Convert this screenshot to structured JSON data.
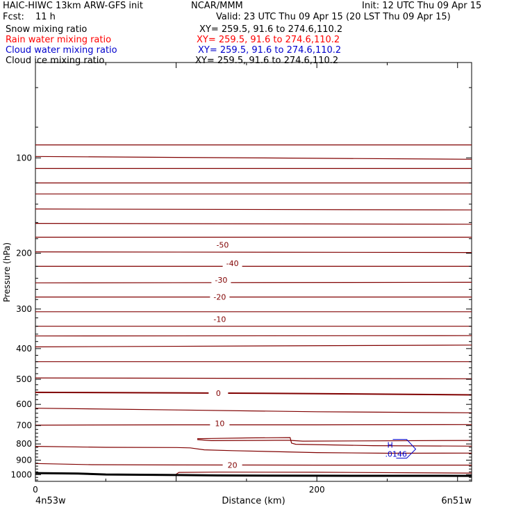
{
  "header": {
    "title_left": "HAIC-HIWC 13km ARW-GFS init",
    "center": "NCAR/MMM",
    "init": "Init: 12 UTC Thu 09 Apr 15",
    "fcst_label": "Fcst:",
    "fcst_value": "11 h",
    "valid": "Valid: 23 UTC Thu 09 Apr 15 (20 LST Thu 09 Apr 15)"
  },
  "fields": [
    {
      "name": "Snow mixing ratio",
      "xy": "XY= 259.5, 91.6 to 274.6,110.2",
      "color": "#000000"
    },
    {
      "name": "Rain water mixing ratio",
      "xy": "XY= 259.5, 91.6 to 274.6,110.2",
      "color": "#ff0000"
    },
    {
      "name": "Cloud water mixing ratio",
      "xy": "XY= 259.5, 91.6 to 274.6,110.2",
      "color": "#0000cc"
    },
    {
      "name": "Cloud ice mixing ratio",
      "xy": "XY= 259.5, 91.6 to 274.6,110.2",
      "color": "#000000"
    }
  ],
  "chart_data": {
    "type": "line",
    "xlabel": "Distance (km)",
    "ylabel": "Pressure (hPa)",
    "xlim": [
      0,
      310
    ],
    "ylim": [
      1050,
      50
    ],
    "y_scale": "log",
    "x_ticks": [
      0,
      200
    ],
    "y_ticks": [
      100,
      200,
      300,
      400,
      500,
      600,
      700,
      800,
      900,
      1000
    ],
    "x_end_labels": {
      "left": "4n53w",
      "right": "6n51w"
    },
    "temperature_labels": [
      {
        "text": "-50",
        "x": 133,
        "p": 188
      },
      {
        "text": "-40",
        "x": 140,
        "p": 215
      },
      {
        "text": "-30",
        "x": 132,
        "p": 243
      },
      {
        "text": "-20",
        "x": 131,
        "p": 275
      },
      {
        "text": "-10",
        "x": 131,
        "p": 323
      },
      {
        "text": "0",
        "x": 130,
        "p": 553
      },
      {
        "text": "10",
        "x": 131,
        "p": 688
      },
      {
        "text": "20",
        "x": 140,
        "p": 932
      }
    ],
    "high_marker": {
      "label": "H",
      "value": ".0146",
      "x": 250,
      "p": 835
    },
    "isotherm_color": "#800000",
    "ground_color": "#000000",
    "isotherms": [
      {
        "x": [
          0,
          310
        ],
        "p": [
          91,
          91
        ]
      },
      {
        "x": [
          0,
          310
        ],
        "p": [
          99,
          101
        ]
      },
      {
        "x": [
          0,
          310
        ],
        "p": [
          108,
          108
        ]
      },
      {
        "x": [
          0,
          310
        ],
        "p": [
          120,
          120
        ]
      },
      {
        "x": [
          0,
          310
        ],
        "p": [
          130,
          130
        ]
      },
      {
        "x": [
          0,
          310
        ],
        "p": [
          145,
          146
        ]
      },
      {
        "x": [
          0,
          310
        ],
        "p": [
          161,
          162
        ]
      },
      {
        "x": [
          0,
          310
        ],
        "p": [
          178,
          178
        ]
      },
      {
        "x": [
          0,
          310
        ],
        "p": [
          198,
          199
        ]
      },
      {
        "x": [
          0,
          310
        ],
        "p": [
          220,
          220
        ]
      },
      {
        "x": [
          0,
          310
        ],
        "p": [
          248,
          247
        ]
      },
      {
        "x": [
          0,
          310
        ],
        "p": [
          275,
          275
        ]
      },
      {
        "x": [
          0,
          310
        ],
        "p": [
          306,
          306
        ]
      },
      {
        "x": [
          0,
          310
        ],
        "p": [
          340,
          340
        ]
      },
      {
        "x": [
          0,
          310
        ],
        "p": [
          365,
          364
        ]
      },
      {
        "x": [
          0,
          310
        ],
        "p": [
          395,
          390
        ]
      },
      {
        "x": [
          0,
          310
        ],
        "p": [
          440,
          440
        ]
      },
      {
        "x": [
          0,
          310
        ],
        "p": [
          495,
          498
        ]
      },
      {
        "x": [
          0,
          100,
          200,
          310
        ],
        "p": [
          550,
          552,
          555,
          560
        ]
      },
      {
        "x": [
          0,
          100,
          200,
          310
        ],
        "p": [
          617,
          625,
          633,
          638
        ]
      },
      {
        "x": [
          0,
          100,
          200,
          310
        ],
        "p": [
          698,
          696,
          696,
          695
        ]
      },
      {
        "x": [
          115,
          125,
          150,
          170,
          180,
          190,
          310
        ],
        "p": [
          775,
          781,
          780,
          779,
          779,
          784,
          780
        ]
      },
      {
        "x": [
          115,
          125,
          150,
          181,
          182,
          185,
          240,
          310
        ],
        "p": [
          770,
          769,
          766,
          764,
          795,
          802,
          810,
          813
        ]
      },
      {
        "x": [
          0,
          50,
          100,
          110,
          120,
          140,
          200,
          250,
          310
        ],
        "p": [
          814,
          820,
          821,
          823,
          835,
          840,
          852,
          856,
          855
        ]
      },
      {
        "x": [
          0,
          40,
          100,
          200,
          310
        ],
        "p": [
          922,
          930,
          932,
          933,
          933
        ]
      },
      {
        "x": [
          100,
          102,
          130,
          200,
          310
        ],
        "p": [
          997,
          984,
          982,
          983,
          989
        ]
      }
    ],
    "ground": {
      "x": [
        0,
        30,
        50,
        100,
        130,
        200,
        310
      ],
      "p": [
        989,
        992,
        999,
        1003,
        1006,
        1008,
        1009
      ]
    }
  }
}
